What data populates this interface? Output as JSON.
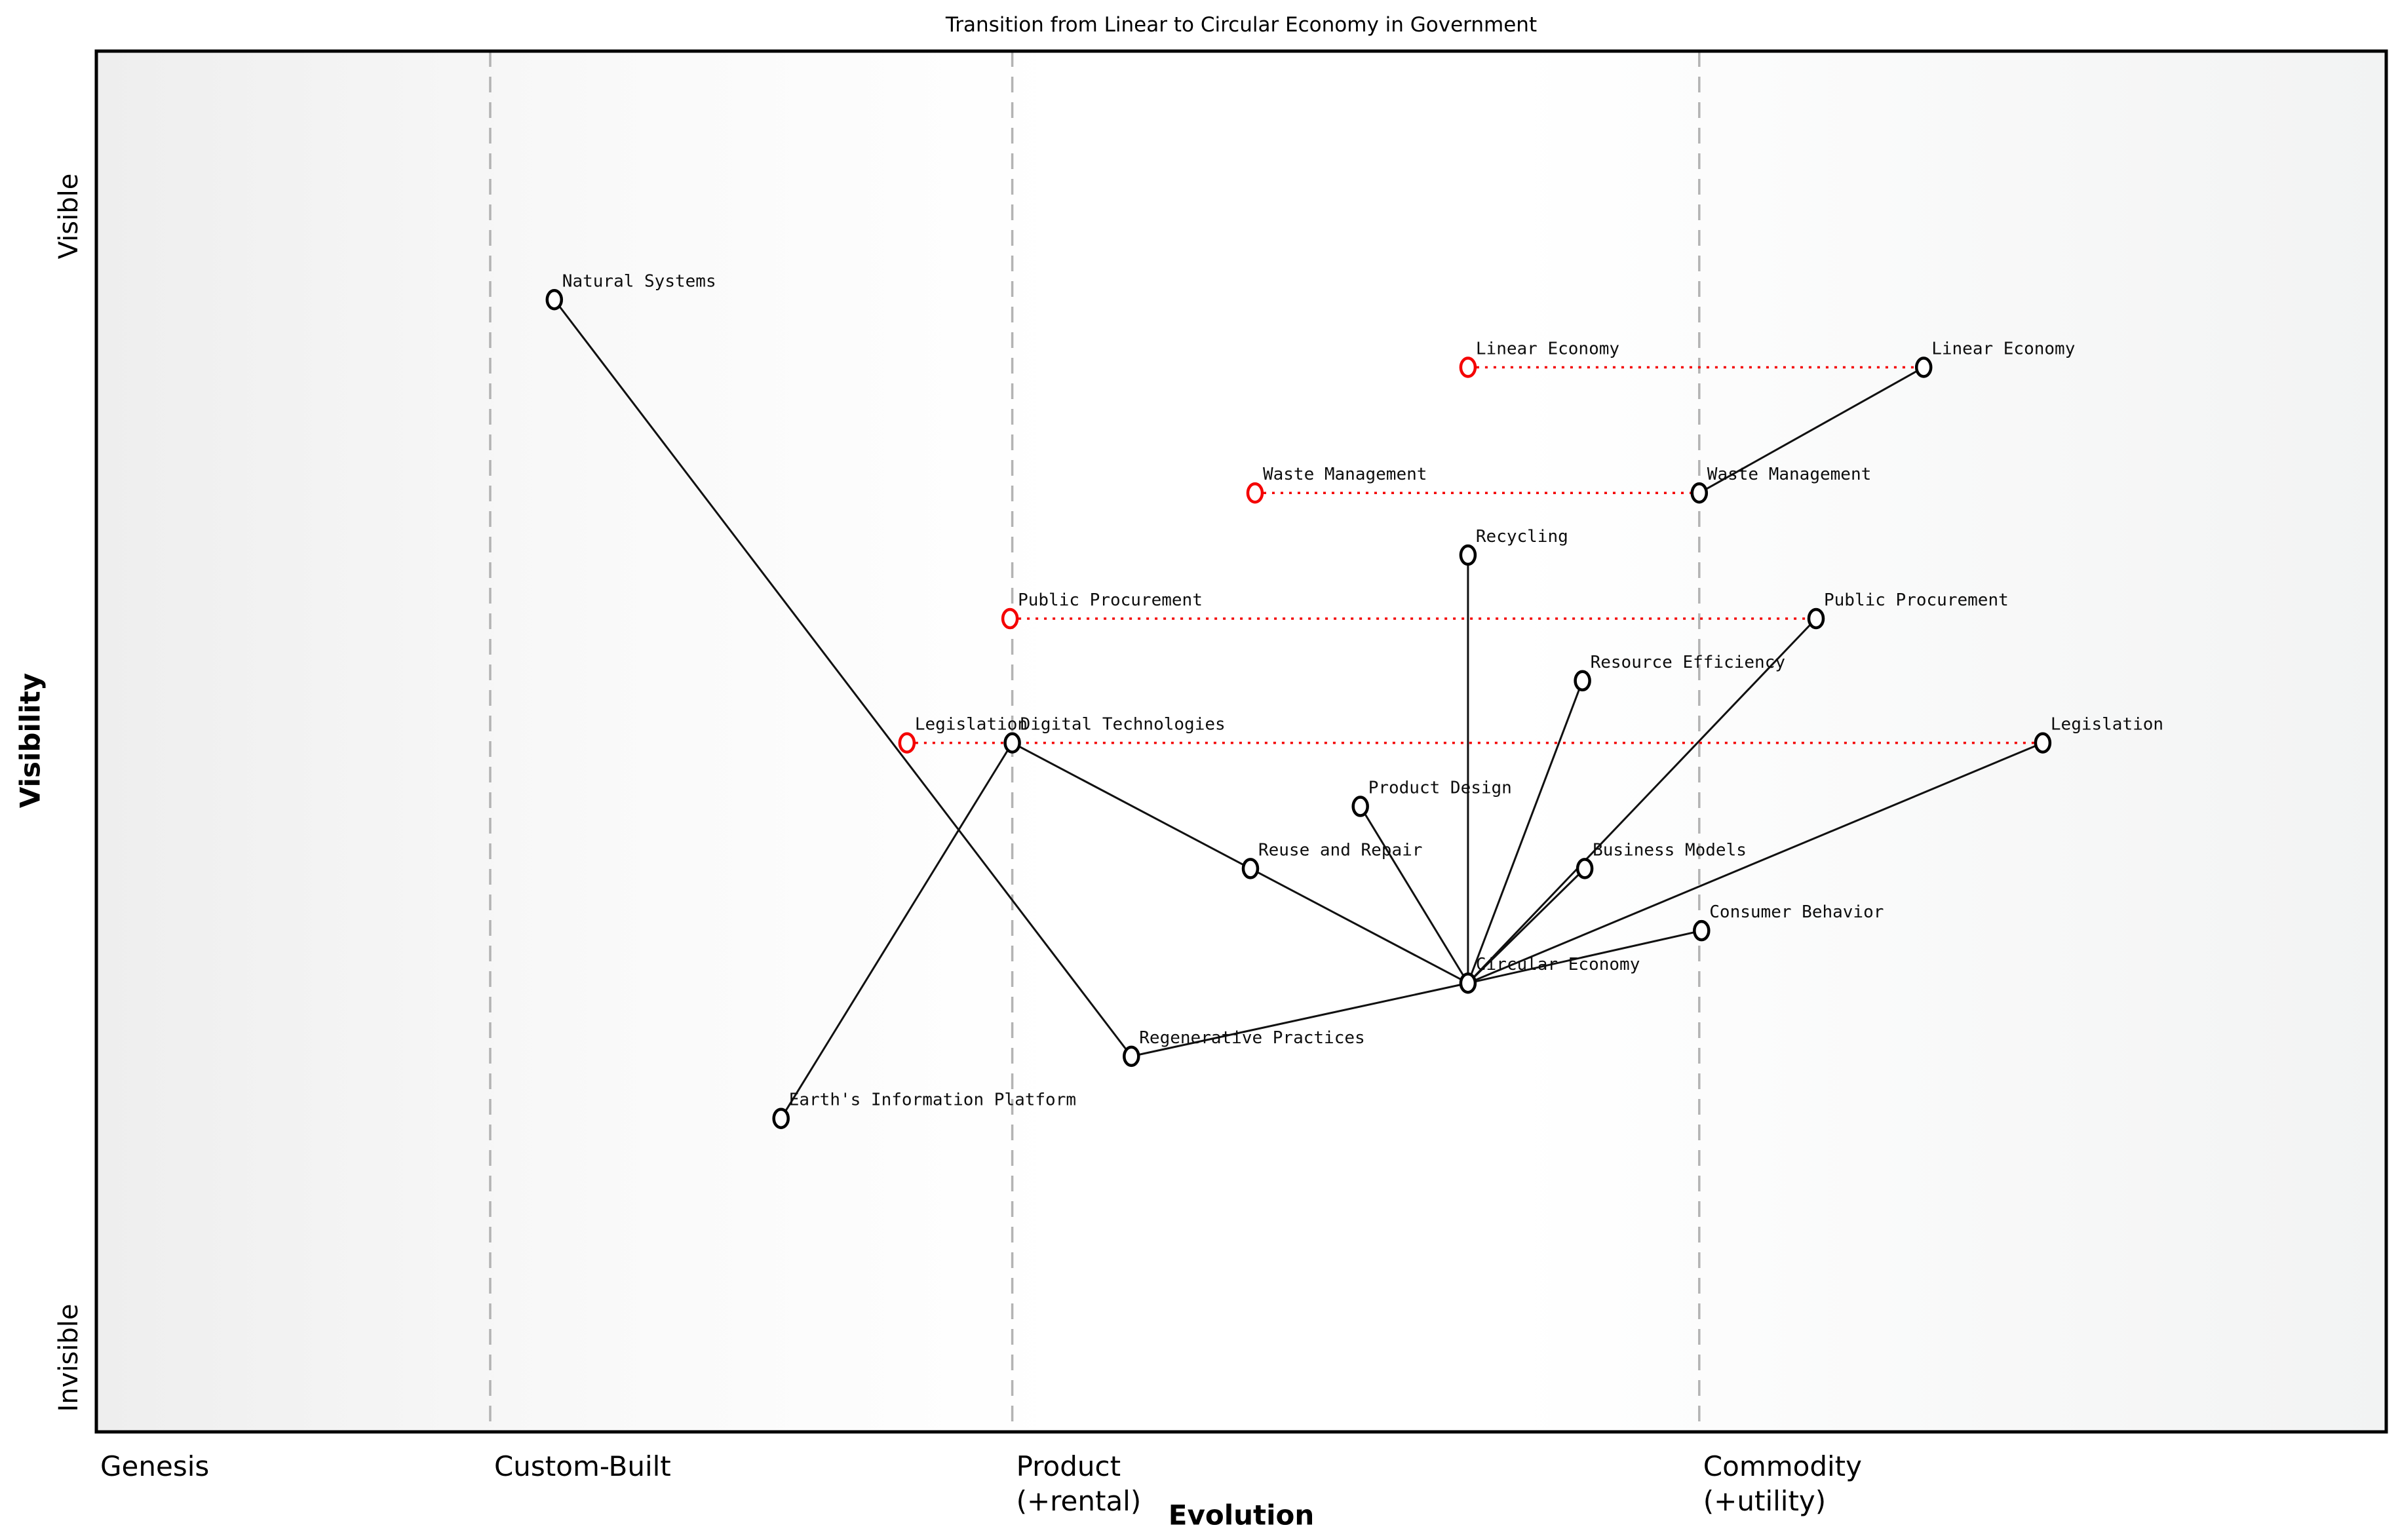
{
  "chart_data": {
    "type": "scatter",
    "subtype": "wardley-map",
    "title": "Transition from Linear to Circular Economy in Government",
    "xlabel": "Evolution",
    "ylabel": "Visibility",
    "y_top_label": "Visible",
    "y_bottom_label": "Invisible",
    "x_range": [
      0,
      1
    ],
    "y_range": [
      0,
      1
    ],
    "grid": "dashed-vertical-stage-lines",
    "legend": "none",
    "x_stages": [
      {
        "label": "Genesis",
        "sublabel": "",
        "evolution": 0.0,
        "gridline": false
      },
      {
        "label": "Custom-Built",
        "sublabel": "",
        "evolution": 0.172,
        "gridline": true
      },
      {
        "label": "Product",
        "sublabel": "(+rental)",
        "evolution": 0.4,
        "gridline": true
      },
      {
        "label": "Commodity",
        "sublabel": "(+utility)",
        "evolution": 0.7,
        "gridline": true
      }
    ],
    "nodes": [
      {
        "id": "natural-systems",
        "label": "Natural Systems",
        "evolution": 0.2,
        "visibility": 0.82,
        "state": "current"
      },
      {
        "id": "linear-economy",
        "label": "Linear Economy",
        "evolution": 0.798,
        "visibility": 0.771,
        "state": "current"
      },
      {
        "id": "waste-management",
        "label": "Waste Management",
        "evolution": 0.7,
        "visibility": 0.68,
        "state": "current"
      },
      {
        "id": "recycling",
        "label": "Recycling",
        "evolution": 0.599,
        "visibility": 0.635,
        "state": "current"
      },
      {
        "id": "public-procurement",
        "label": "Public Procurement",
        "evolution": 0.751,
        "visibility": 0.589,
        "state": "current"
      },
      {
        "id": "resource-efficiency",
        "label": "Resource Efficiency",
        "evolution": 0.649,
        "visibility": 0.544,
        "state": "current"
      },
      {
        "id": "digital-technologies",
        "label": "Digital Technologies",
        "evolution": 0.4,
        "visibility": 0.499,
        "state": "current"
      },
      {
        "id": "legislation",
        "label": "Legislation",
        "evolution": 0.85,
        "visibility": 0.499,
        "state": "current"
      },
      {
        "id": "product-design",
        "label": "Product Design",
        "evolution": 0.552,
        "visibility": 0.453,
        "state": "current"
      },
      {
        "id": "reuse-and-repair",
        "label": "Reuse and Repair",
        "evolution": 0.504,
        "visibility": 0.408,
        "state": "current"
      },
      {
        "id": "business-models",
        "label": "Business Models",
        "evolution": 0.65,
        "visibility": 0.408,
        "state": "current"
      },
      {
        "id": "consumer-behavior",
        "label": "Consumer Behavior",
        "evolution": 0.701,
        "visibility": 0.363,
        "state": "current"
      },
      {
        "id": "circular-economy",
        "label": "Circular Economy",
        "evolution": 0.599,
        "visibility": 0.325,
        "state": "current"
      },
      {
        "id": "regenerative-practices",
        "label": "Regenerative Practices",
        "evolution": 0.452,
        "visibility": 0.272,
        "state": "current"
      },
      {
        "id": "earths-information-platform",
        "label": "Earth's Information Platform",
        "evolution": 0.299,
        "visibility": 0.227,
        "state": "current"
      },
      {
        "id": "linear-economy-old",
        "label": "Linear Economy",
        "evolution": 0.599,
        "visibility": 0.771,
        "state": "past"
      },
      {
        "id": "waste-management-old",
        "label": "Waste Management",
        "evolution": 0.506,
        "visibility": 0.68,
        "state": "past"
      },
      {
        "id": "public-procurement-old",
        "label": "Public Procurement",
        "evolution": 0.399,
        "visibility": 0.589,
        "state": "past"
      },
      {
        "id": "legislation-old",
        "label": "Legislation",
        "evolution": 0.354,
        "visibility": 0.499,
        "state": "past"
      }
    ],
    "edges": [
      {
        "from": "circular-economy",
        "to": "recycling"
      },
      {
        "from": "circular-economy",
        "to": "resource-efficiency"
      },
      {
        "from": "circular-economy",
        "to": "product-design"
      },
      {
        "from": "circular-economy",
        "to": "reuse-and-repair"
      },
      {
        "from": "circular-economy",
        "to": "business-models"
      },
      {
        "from": "circular-economy",
        "to": "consumer-behavior"
      },
      {
        "from": "circular-economy",
        "to": "regenerative-practices"
      },
      {
        "from": "circular-economy",
        "to": "public-procurement"
      },
      {
        "from": "circular-economy",
        "to": "legislation"
      },
      {
        "from": "digital-technologies",
        "to": "reuse-and-repair"
      },
      {
        "from": "earths-information-platform",
        "to": "digital-technologies"
      },
      {
        "from": "natural-systems",
        "to": "regenerative-practices"
      },
      {
        "from": "linear-economy",
        "to": "waste-management"
      }
    ],
    "movements": [
      {
        "from": "linear-economy-old",
        "to": "linear-economy"
      },
      {
        "from": "waste-management-old",
        "to": "waste-management"
      },
      {
        "from": "public-procurement-old",
        "to": "public-procurement"
      },
      {
        "from": "legislation-old",
        "to": "legislation"
      }
    ],
    "colors": {
      "node_stroke": "#000000",
      "past_node_stroke": "#f40000",
      "node_fill": "#ffffff",
      "edge": "#111111",
      "movement": "#f40000",
      "gridline": "#b3b3b3",
      "plot_border": "#000000",
      "label_text": "#0d0d0d",
      "bg_left": "#eeeeee",
      "bg_mid": "#ffffff",
      "bg_right": "#f2f3f3"
    }
  }
}
